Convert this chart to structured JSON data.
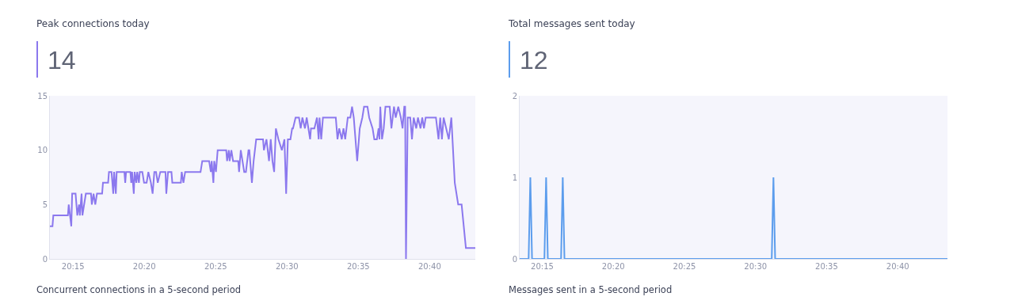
{
  "chart_data": [
    {
      "type": "line",
      "title": "Peak connections today",
      "subtitle": "14",
      "annotations": [
        "Concurrent connections in a 5-second period"
      ],
      "x": [
        20.223,
        20.226,
        20.227,
        20.244,
        20.245,
        20.248,
        20.249,
        20.253,
        20.255,
        20.257,
        20.258,
        20.26,
        20.261,
        20.265,
        20.271,
        20.272,
        20.274,
        20.276,
        20.278,
        20.284,
        20.285,
        20.291,
        20.292,
        20.295,
        20.297,
        20.298,
        20.3,
        20.301,
        20.31,
        20.311,
        20.312,
        20.317,
        20.318,
        20.319,
        20.321,
        20.322,
        20.324,
        20.325,
        20.327,
        20.328,
        20.331,
        20.333,
        20.336,
        20.338,
        20.341,
        20.343,
        20.345,
        20.347,
        20.349,
        20.352,
        20.358,
        20.359,
        20.361,
        20.365,
        20.366,
        20.376,
        20.377,
        20.379,
        20.381,
        20.399,
        20.401,
        20.409,
        20.411,
        20.412,
        20.414,
        20.415,
        20.417,
        20.419,
        20.429,
        20.43,
        20.432,
        20.433,
        20.435,
        20.437,
        20.443,
        20.444,
        20.446,
        20.448,
        20.45,
        20.452,
        20.455,
        20.456,
        20.459,
        20.461,
        20.464,
        20.472,
        20.473,
        20.476,
        20.479,
        20.481,
        20.483,
        20.485,
        20.487,
        20.49,
        20.494,
        20.497,
        20.499,
        20.501,
        20.504,
        20.506,
        20.507,
        20.51,
        20.514,
        20.516,
        20.518,
        20.521,
        20.523,
        20.527,
        20.528,
        20.532,
        20.535,
        20.537,
        20.538,
        20.54,
        20.542,
        20.557,
        20.559,
        20.561,
        20.564,
        20.566,
        20.568,
        20.571,
        20.574,
        20.576,
        20.578,
        20.582,
        20.585,
        20.588,
        20.59,
        20.594,
        20.596,
        20.6,
        20.602,
        20.605,
        20.607,
        20.608,
        20.609,
        20.611,
        20.613,
        20.615,
        20.62,
        20.622,
        20.625,
        20.627,
        20.63,
        20.633,
        20.635,
        20.637,
        20.638,
        20.639,
        20.641,
        20.644,
        20.646,
        20.648,
        20.651,
        20.653,
        20.656,
        20.658,
        20.66,
        20.662,
        20.674,
        20.677,
        20.679,
        20.681,
        20.683,
        20.686,
        20.689,
        20.692,
        20.694,
        20.696,
        20.698,
        20.7,
        20.704,
        20.709,
        20.72
      ],
      "series": [
        {
          "color": "#8b78ee",
          "values": [
            3,
            3,
            4,
            4,
            5,
            3,
            6,
            6,
            4,
            5,
            4,
            6,
            4,
            6,
            6,
            5,
            6,
            5,
            6,
            6,
            7,
            7,
            8,
            8,
            6,
            8,
            6,
            8,
            8,
            7,
            8,
            8,
            7,
            8,
            6,
            8,
            7,
            8,
            7,
            8,
            8,
            7,
            7,
            8,
            7,
            6,
            8,
            8,
            7,
            8,
            8,
            6,
            8,
            8,
            7,
            7,
            8,
            7,
            8,
            8,
            9,
            9,
            8,
            9,
            7,
            9,
            8,
            10,
            10,
            9,
            10,
            9,
            10,
            9,
            9,
            8,
            10,
            9,
            8,
            8,
            10,
            10,
            7,
            9,
            11,
            11,
            10,
            11,
            9,
            11,
            9,
            8,
            12,
            11,
            10,
            11,
            6,
            11,
            11,
            12,
            12,
            13,
            13,
            12,
            13,
            12,
            13,
            11,
            12,
            12,
            13,
            11,
            13,
            11,
            13,
            13,
            11,
            12,
            11,
            12,
            11,
            13,
            13,
            14,
            13,
            9,
            12,
            13,
            14,
            14,
            13,
            12,
            11,
            11,
            12,
            11,
            14,
            11,
            12,
            14,
            14,
            12,
            14,
            13,
            14,
            13,
            12,
            14,
            14,
            0,
            13,
            13,
            11,
            13,
            12,
            13,
            12,
            13,
            12,
            13,
            13,
            11,
            13,
            11,
            13,
            12,
            11,
            13,
            10,
            7,
            6,
            5,
            5,
            1,
            1
          ]
        }
      ],
      "xlim": [
        20.223,
        20.72
      ],
      "xticks": [
        {
          "value": 20.25,
          "label": "20:15"
        },
        {
          "value": 20.3333,
          "label": "20:20"
        },
        {
          "value": 20.4167,
          "label": "20:25"
        },
        {
          "value": 20.5,
          "label": "20:30"
        },
        {
          "value": 20.5833,
          "label": "20:35"
        },
        {
          "value": 20.6667,
          "label": "20:40"
        }
      ],
      "ylim": [
        0,
        15
      ],
      "yticks": [
        0,
        5,
        10,
        15
      ],
      "grid": false,
      "legend": false,
      "marker": "none",
      "line_style": "solid"
    },
    {
      "type": "line",
      "title": "Total messages sent today",
      "subtitle": "12",
      "annotations": [
        "Messages sent in a 5-second period"
      ],
      "x": [
        20.2235,
        20.234,
        20.236,
        20.238,
        20.2525,
        20.2545,
        20.2565,
        20.272,
        20.274,
        20.276,
        20.519,
        20.521,
        20.523,
        20.725
      ],
      "series": [
        {
          "color": "#5c9ded",
          "values": [
            0,
            0,
            1,
            0,
            0,
            1,
            0,
            0,
            1,
            0,
            0,
            1,
            0,
            0
          ]
        }
      ],
      "xlim": [
        20.2235,
        20.725
      ],
      "xticks": [
        {
          "value": 20.25,
          "label": "20:15"
        },
        {
          "value": 20.3333,
          "label": "20:20"
        },
        {
          "value": 20.4167,
          "label": "20:25"
        },
        {
          "value": 20.5,
          "label": "20:30"
        },
        {
          "value": 20.5833,
          "label": "20:35"
        },
        {
          "value": 20.6667,
          "label": "20:40"
        }
      ],
      "ylim": [
        0,
        2
      ],
      "yticks": [
        0,
        1,
        2
      ],
      "grid": false,
      "legend": false,
      "marker": "none",
      "line_style": "solid"
    }
  ]
}
